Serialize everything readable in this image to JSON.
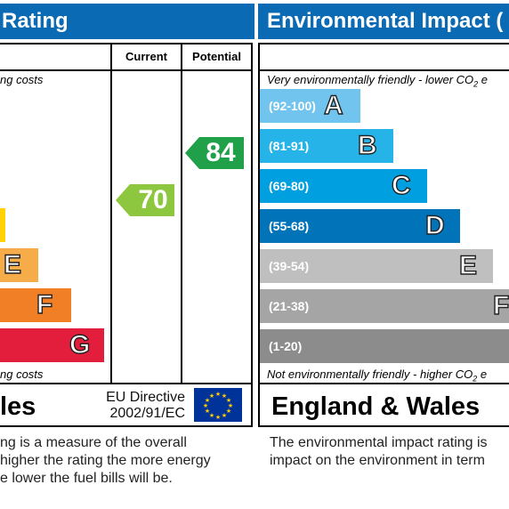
{
  "energy": {
    "header_title": "Rating",
    "col_current": "Current",
    "col_potential": "Potential",
    "top_note": "ng costs",
    "bottom_note": "ng costs",
    "footer_region": "les",
    "directive_line1": "EU Directive",
    "directive_line2": "2002/91/EC",
    "current_rating": "70",
    "potential_rating": "84",
    "current_color": "#8dc63f",
    "potential_color": "#21a04a",
    "bands": [
      {
        "letter": "E",
        "color": "#f7ac4a"
      },
      {
        "letter": "F",
        "color": "#f07f25"
      },
      {
        "letter": "G",
        "color": "#e31d3c"
      }
    ],
    "band_d_color": "#ffd200",
    "description": [
      "ng is a measure of the overall",
      "higher the rating the more energy",
      "e lower the fuel bills will be."
    ]
  },
  "environmental": {
    "header_title": "Environmental Impact (",
    "top_note": "Very environmentally friendly - lower CO",
    "top_note_sub": "2",
    "top_note_tail": " e",
    "bottom_note": "Not environmentally friendly - higher CO",
    "bottom_note_sub": "2",
    "bottom_note_tail": " e",
    "footer_region": "England & Wales",
    "bands": [
      {
        "range": "(92-100)",
        "letter": "A",
        "color": "#71c4ed"
      },
      {
        "range": "(81-91)",
        "letter": "B",
        "color": "#25b3e8"
      },
      {
        "range": "(69-80)",
        "letter": "C",
        "color": "#009fdf"
      },
      {
        "range": "(55-68)",
        "letter": "D",
        "color": "#0073b9"
      },
      {
        "range": "(39-54)",
        "letter": "E",
        "color": "#bfbfbf"
      },
      {
        "range": "(21-38)",
        "letter": "F",
        "color": "#a5a5a5"
      },
      {
        "range": "(1-20)",
        "letter": "",
        "color": "#8c8c8c"
      }
    ],
    "description": [
      "The environmental impact rating is",
      "impact on the environment in term"
    ]
  }
}
